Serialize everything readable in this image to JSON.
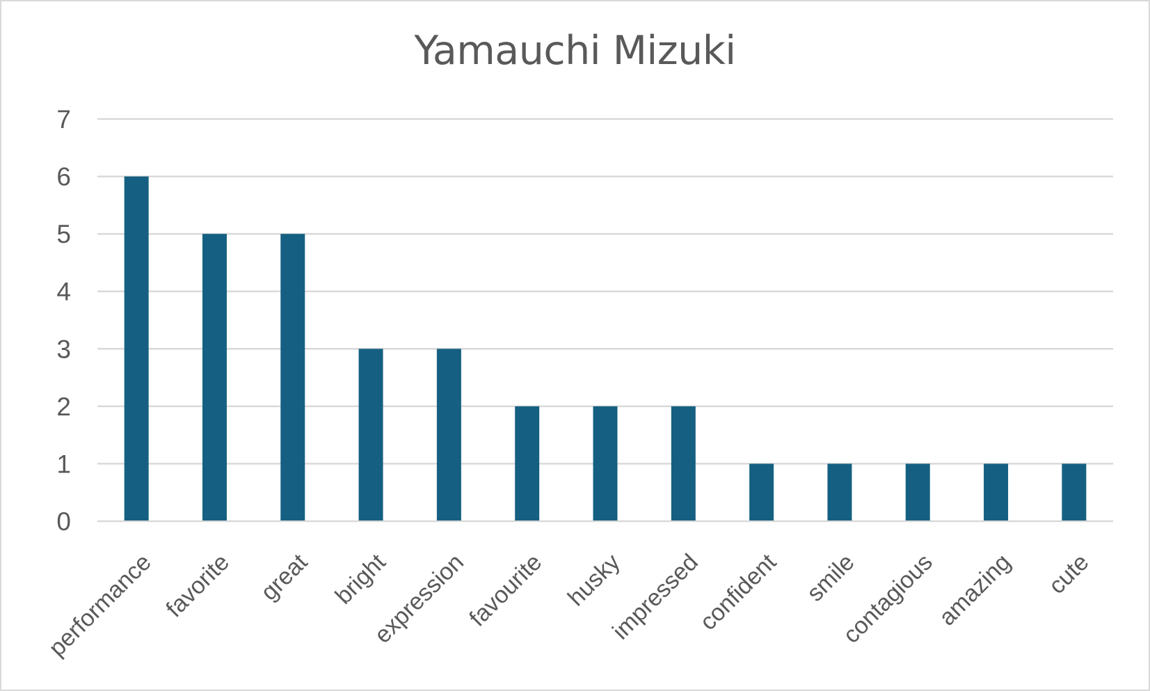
{
  "chart_data": {
    "type": "bar",
    "title": "Yamauchi Mizuki",
    "xlabel": "",
    "ylabel": "",
    "categories": [
      "performance",
      "favorite",
      "great",
      "bright",
      "expression",
      "favourite",
      "husky",
      "impressed",
      "confident",
      "smile",
      "contagious",
      "amazing",
      "cute"
    ],
    "values": [
      6,
      5,
      5,
      3,
      3,
      2,
      2,
      2,
      1,
      1,
      1,
      1,
      1
    ],
    "ylim": [
      0,
      7
    ],
    "yticks": [
      0,
      1,
      2,
      3,
      4,
      5,
      6,
      7
    ],
    "grid": true,
    "legend": "none",
    "x_label_rotation": -45,
    "colors": {
      "bar": "#156082",
      "text": "#595959",
      "gridline": "#d9d9d9",
      "border": "#d9d9d9"
    }
  }
}
